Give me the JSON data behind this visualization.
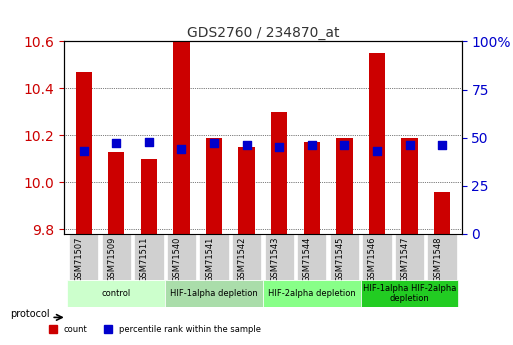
{
  "title": "GDS2760 / 234870_at",
  "samples": [
    "GSM71507",
    "GSM71509",
    "GSM71511",
    "GSM71540",
    "GSM71541",
    "GSM71542",
    "GSM71543",
    "GSM71544",
    "GSM71545",
    "GSM71546",
    "GSM71547",
    "GSM71548"
  ],
  "count_values": [
    10.47,
    10.13,
    10.1,
    10.6,
    10.19,
    10.15,
    10.3,
    10.17,
    10.19,
    10.55,
    10.19,
    9.96
  ],
  "percentile_values": [
    43,
    47,
    48,
    44,
    47,
    46,
    45,
    46,
    46,
    43,
    46,
    46
  ],
  "y_min": 9.78,
  "y_max": 10.6,
  "y_ticks": [
    9.8,
    10.0,
    10.2,
    10.4,
    10.6
  ],
  "y2_ticks": [
    0,
    25,
    50,
    75,
    100
  ],
  "bar_color": "#cc0000",
  "dot_color": "#0000cc",
  "bar_width": 0.5,
  "groups": [
    {
      "label": "control",
      "start": 0,
      "end": 3,
      "color": "#ccffcc"
    },
    {
      "label": "HIF-1alpha depletion",
      "start": 3,
      "end": 6,
      "color": "#aaddaa"
    },
    {
      "label": "HIF-2alpha depletion",
      "start": 6,
      "end": 9,
      "color": "#88ff88"
    },
    {
      "label": "HIF-1alpha HIF-2alpha\ndepletion",
      "start": 9,
      "end": 12,
      "color": "#22cc22"
    }
  ],
  "protocol_label": "protocol",
  "legend_count_label": "count",
  "legend_pct_label": "percentile rank within the sample",
  "xlabel_rotation": 90,
  "background_plot": "#ffffff",
  "background_xtick": "#d0d0d0",
  "left_tick_color": "#cc0000",
  "right_tick_color": "#0000cc",
  "title_color": "#333333"
}
